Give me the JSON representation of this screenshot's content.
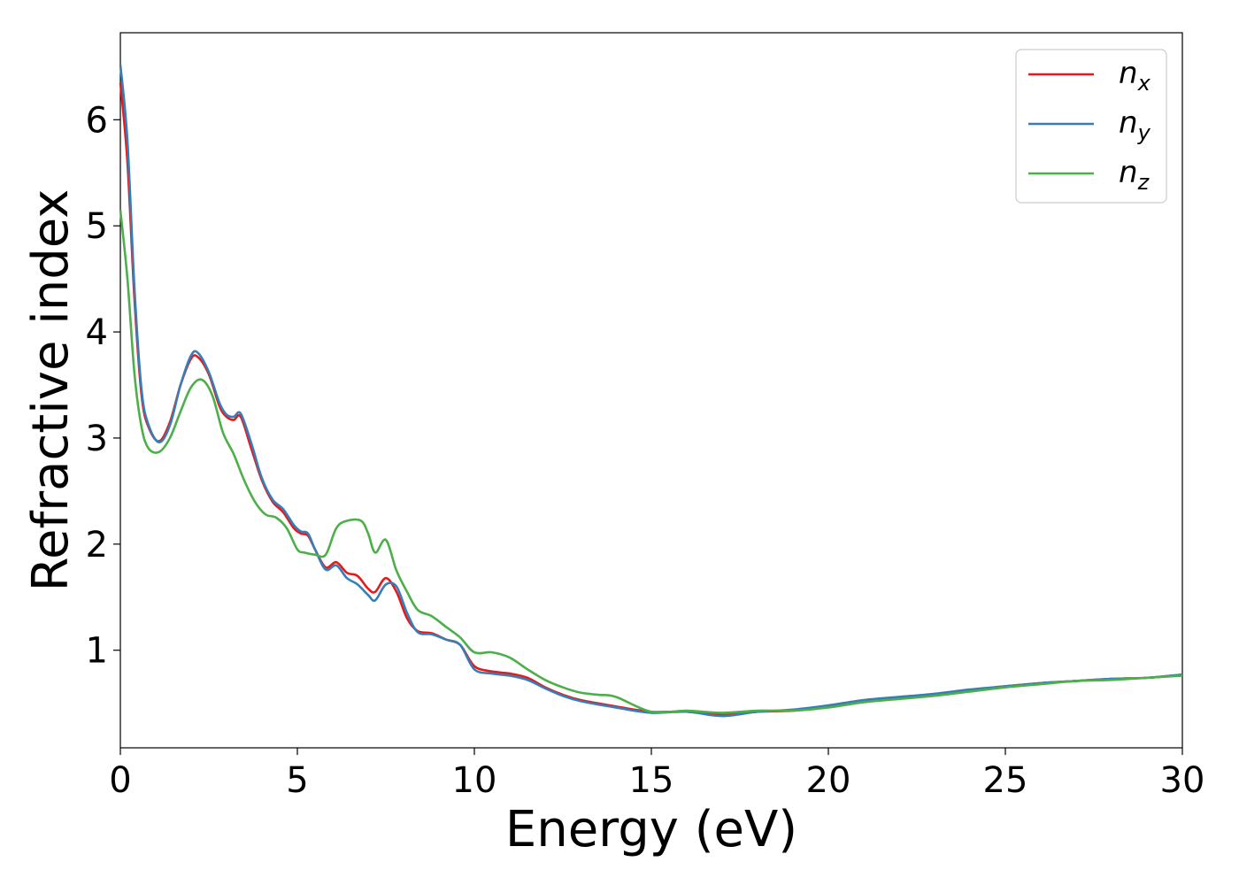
{
  "chart_data": {
    "type": "line",
    "title": "",
    "xlabel": "Energy (eV)",
    "ylabel": "Refractive index",
    "xlim": [
      0,
      30
    ],
    "ylim": [
      0.08,
      6.82
    ],
    "xticks": [
      0,
      5,
      10,
      15,
      20,
      25,
      30
    ],
    "xtick_labels": [
      "0",
      "5",
      "10",
      "15",
      "20",
      "25",
      "30"
    ],
    "yticks": [
      1,
      2,
      3,
      4,
      5,
      6
    ],
    "ytick_labels": [
      "1",
      "2",
      "3",
      "4",
      "5",
      "6"
    ],
    "grid": false,
    "legend_position": "top-right",
    "series": [
      {
        "name": "n_x",
        "label_base": "n",
        "label_sub": "x",
        "color": "#e41a1c",
        "x": [
          0,
          0.2,
          0.4,
          0.6,
          0.8,
          1.1,
          1.4,
          1.7,
          2.0,
          2.2,
          2.5,
          2.8,
          3.0,
          3.2,
          3.4,
          3.7,
          4.0,
          4.3,
          4.6,
          4.9,
          5.1,
          5.3,
          5.5,
          5.8,
          6.1,
          6.4,
          6.7,
          7.0,
          7.2,
          7.5,
          7.8,
          8.1,
          8.4,
          8.8,
          9.2,
          9.6,
          10.0,
          10.5,
          11.0,
          11.5,
          12.0,
          12.5,
          13.0,
          14.0,
          15.0,
          16.0,
          17.0,
          18.0,
          19.0,
          20.0,
          21.0,
          22.0,
          23.0,
          24.0,
          25.0,
          26.0,
          27.0,
          28.0,
          29.0,
          30.0
        ],
        "values": [
          6.35,
          5.6,
          4.3,
          3.4,
          3.1,
          2.97,
          3.15,
          3.5,
          3.75,
          3.76,
          3.6,
          3.3,
          3.2,
          3.17,
          3.2,
          2.9,
          2.6,
          2.4,
          2.3,
          2.15,
          2.1,
          2.08,
          1.95,
          1.78,
          1.83,
          1.73,
          1.7,
          1.58,
          1.55,
          1.68,
          1.55,
          1.3,
          1.18,
          1.16,
          1.1,
          1.05,
          0.85,
          0.8,
          0.78,
          0.74,
          0.65,
          0.58,
          0.53,
          0.47,
          0.42,
          0.42,
          0.39,
          0.42,
          0.43,
          0.47,
          0.52,
          0.55,
          0.58,
          0.62,
          0.66,
          0.69,
          0.71,
          0.73,
          0.74,
          0.77
        ]
      },
      {
        "name": "n_y",
        "label_base": "n",
        "label_sub": "y",
        "color": "#377eb8",
        "x": [
          0,
          0.2,
          0.4,
          0.6,
          0.8,
          1.1,
          1.4,
          1.7,
          2.0,
          2.2,
          2.5,
          2.8,
          3.0,
          3.2,
          3.4,
          3.7,
          4.0,
          4.3,
          4.6,
          4.9,
          5.1,
          5.3,
          5.5,
          5.8,
          6.1,
          6.4,
          6.7,
          7.0,
          7.2,
          7.5,
          7.8,
          8.1,
          8.4,
          8.8,
          9.2,
          9.6,
          10.0,
          10.5,
          11.0,
          11.5,
          12.0,
          12.5,
          13.0,
          14.0,
          15.0,
          16.0,
          17.0,
          18.0,
          19.0,
          20.0,
          21.0,
          22.0,
          23.0,
          24.0,
          25.0,
          26.0,
          27.0,
          28.0,
          29.0,
          30.0
        ],
        "values": [
          6.52,
          5.8,
          4.4,
          3.45,
          3.12,
          2.96,
          3.12,
          3.5,
          3.78,
          3.8,
          3.62,
          3.33,
          3.22,
          3.2,
          3.23,
          2.95,
          2.62,
          2.42,
          2.33,
          2.18,
          2.12,
          2.1,
          1.95,
          1.76,
          1.8,
          1.68,
          1.62,
          1.52,
          1.47,
          1.62,
          1.6,
          1.35,
          1.17,
          1.15,
          1.1,
          1.05,
          0.82,
          0.78,
          0.76,
          0.72,
          0.64,
          0.57,
          0.52,
          0.46,
          0.41,
          0.42,
          0.38,
          0.42,
          0.44,
          0.48,
          0.53,
          0.56,
          0.59,
          0.63,
          0.66,
          0.69,
          0.71,
          0.73,
          0.74,
          0.77
        ]
      },
      {
        "name": "n_z",
        "label_base": "n",
        "label_sub": "z",
        "color": "#4daf4a",
        "x": [
          0,
          0.2,
          0.4,
          0.6,
          0.8,
          1.1,
          1.4,
          1.7,
          2.0,
          2.3,
          2.6,
          2.9,
          3.2,
          3.5,
          3.8,
          4.1,
          4.4,
          4.7,
          5.0,
          5.2,
          5.5,
          5.8,
          6.1,
          6.4,
          6.8,
          7.0,
          7.2,
          7.5,
          7.8,
          8.1,
          8.4,
          8.8,
          9.2,
          9.6,
          10.0,
          10.5,
          11.0,
          11.5,
          12.0,
          12.5,
          13.0,
          13.5,
          14.0,
          15.0,
          16.0,
          17.0,
          18.0,
          19.0,
          20.0,
          21.0,
          22.0,
          23.0,
          24.0,
          25.0,
          26.0,
          27.0,
          28.0,
          29.0,
          30.0
        ],
        "values": [
          5.15,
          4.5,
          3.6,
          3.1,
          2.9,
          2.87,
          3.0,
          3.25,
          3.48,
          3.55,
          3.4,
          3.05,
          2.85,
          2.6,
          2.4,
          2.28,
          2.25,
          2.15,
          1.95,
          1.92,
          1.9,
          1.9,
          2.15,
          2.22,
          2.22,
          2.1,
          1.92,
          2.04,
          1.75,
          1.55,
          1.38,
          1.32,
          1.22,
          1.12,
          0.98,
          0.98,
          0.93,
          0.82,
          0.72,
          0.65,
          0.6,
          0.58,
          0.56,
          0.42,
          0.43,
          0.41,
          0.43,
          0.43,
          0.46,
          0.51,
          0.54,
          0.57,
          0.61,
          0.65,
          0.68,
          0.71,
          0.72,
          0.74,
          0.76
        ]
      }
    ]
  }
}
